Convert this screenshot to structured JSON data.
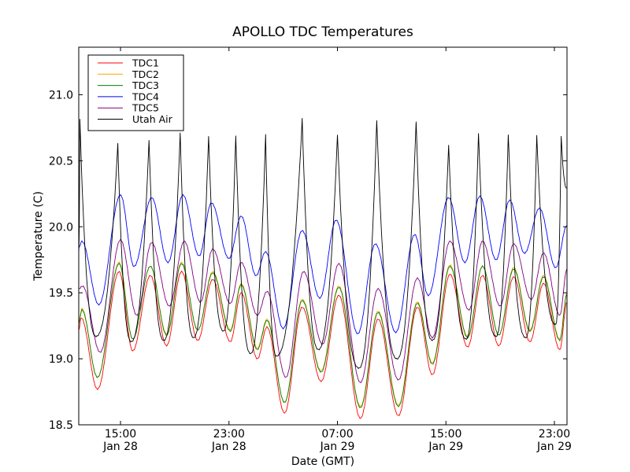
{
  "chart_data": {
    "type": "line",
    "title": "APOLLO TDC Temperatures",
    "xlabel": "Date (GMT)",
    "ylabel": "Temperature (C)",
    "x_units": "hours since Jan 28 12:00 GMT",
    "xlim": [
      -0.08,
      35.93
    ],
    "ylim": [
      18.5,
      21.36
    ],
    "grid": false,
    "legend_position": "top-left",
    "y_ticks": [
      {
        "value": 18.5,
        "label": "18.5"
      },
      {
        "value": 19.0,
        "label": "19.0"
      },
      {
        "value": 19.5,
        "label": "19.5"
      },
      {
        "value": 20.0,
        "label": "20.0"
      },
      {
        "value": 20.5,
        "label": "20.5"
      },
      {
        "value": 21.0,
        "label": "21.0"
      }
    ],
    "x_ticks": [
      {
        "value": 3,
        "time": "15:00",
        "date": "Jan 28"
      },
      {
        "value": 11,
        "time": "23:00",
        "date": "Jan 28"
      },
      {
        "value": 19,
        "time": "07:00",
        "date": "Jan 29"
      },
      {
        "value": 27,
        "time": "15:00",
        "date": "Jan 29"
      },
      {
        "value": 35,
        "time": "23:00",
        "date": "Jan 29"
      }
    ],
    "series": [
      {
        "name": "TDC1",
        "color": "#ff0000",
        "style": "smooth",
        "points": [
          [
            -0.08,
            19.22
          ],
          [
            0.1,
            19.31
          ],
          [
            1.3,
            18.77
          ],
          [
            2.9,
            19.66
          ],
          [
            3.9,
            19.06
          ],
          [
            5.2,
            19.63
          ],
          [
            6.4,
            19.1
          ],
          [
            7.5,
            19.66
          ],
          [
            8.7,
            19.14
          ],
          [
            9.8,
            19.6
          ],
          [
            11.1,
            19.13
          ],
          [
            11.9,
            19.5
          ],
          [
            13.1,
            19.0
          ],
          [
            13.8,
            19.24
          ],
          [
            15.1,
            18.59
          ],
          [
            16.4,
            19.39
          ],
          [
            17.8,
            18.83
          ],
          [
            19.1,
            19.48
          ],
          [
            20.7,
            18.55
          ],
          [
            22.0,
            19.3
          ],
          [
            23.5,
            18.57
          ],
          [
            24.9,
            19.39
          ],
          [
            26.0,
            18.88
          ],
          [
            27.3,
            19.64
          ],
          [
            28.6,
            19.09
          ],
          [
            29.7,
            19.63
          ],
          [
            30.9,
            19.1
          ],
          [
            32.0,
            19.62
          ],
          [
            33.2,
            19.13
          ],
          [
            34.2,
            19.57
          ],
          [
            35.4,
            19.07
          ],
          [
            35.93,
            19.43
          ]
        ]
      },
      {
        "name": "TDC2",
        "color": "#ffa500",
        "style": "smooth",
        "points": [
          [
            -0.08,
            19.28
          ],
          [
            0.15,
            19.38
          ],
          [
            1.3,
            18.86
          ],
          [
            2.9,
            19.73
          ],
          [
            3.9,
            19.15
          ],
          [
            5.2,
            19.7
          ],
          [
            6.4,
            19.19
          ],
          [
            7.5,
            19.73
          ],
          [
            8.7,
            19.22
          ],
          [
            9.8,
            19.66
          ],
          [
            11.1,
            19.22
          ],
          [
            11.9,
            19.57
          ],
          [
            13.1,
            19.08
          ],
          [
            13.8,
            19.3
          ],
          [
            15.1,
            18.67
          ],
          [
            16.4,
            19.45
          ],
          [
            17.8,
            18.91
          ],
          [
            19.1,
            19.55
          ],
          [
            20.7,
            18.64
          ],
          [
            22.0,
            19.36
          ],
          [
            23.5,
            18.65
          ],
          [
            24.9,
            19.43
          ],
          [
            26.0,
            18.97
          ],
          [
            27.3,
            19.71
          ],
          [
            28.6,
            19.17
          ],
          [
            29.7,
            19.7
          ],
          [
            30.9,
            19.18
          ],
          [
            32.0,
            19.69
          ],
          [
            33.2,
            19.22
          ],
          [
            34.2,
            19.63
          ],
          [
            35.4,
            19.15
          ],
          [
            35.93,
            19.5
          ]
        ]
      },
      {
        "name": "TDC3",
        "color": "#008000",
        "style": "smooth",
        "points": [
          [
            -0.08,
            19.27
          ],
          [
            0.15,
            19.37
          ],
          [
            1.3,
            18.86
          ],
          [
            2.9,
            19.72
          ],
          [
            3.9,
            19.15
          ],
          [
            5.2,
            19.7
          ],
          [
            6.4,
            19.18
          ],
          [
            7.5,
            19.72
          ],
          [
            8.7,
            19.22
          ],
          [
            9.8,
            19.65
          ],
          [
            11.1,
            19.21
          ],
          [
            11.9,
            19.56
          ],
          [
            13.1,
            19.07
          ],
          [
            13.8,
            19.29
          ],
          [
            15.1,
            18.67
          ],
          [
            16.4,
            19.44
          ],
          [
            17.8,
            18.9
          ],
          [
            19.1,
            19.54
          ],
          [
            20.7,
            18.63
          ],
          [
            22.0,
            19.35
          ],
          [
            23.5,
            18.64
          ],
          [
            24.9,
            19.42
          ],
          [
            26.0,
            18.96
          ],
          [
            27.3,
            19.7
          ],
          [
            28.6,
            19.16
          ],
          [
            29.7,
            19.7
          ],
          [
            30.9,
            19.18
          ],
          [
            32.0,
            19.68
          ],
          [
            33.2,
            19.21
          ],
          [
            34.2,
            19.62
          ],
          [
            35.4,
            19.14
          ],
          [
            35.93,
            19.49
          ]
        ]
      },
      {
        "name": "TDC4",
        "color": "#0000ff",
        "style": "smooth",
        "points": [
          [
            -0.08,
            19.84
          ],
          [
            0.15,
            19.89
          ],
          [
            1.4,
            19.41
          ],
          [
            3.0,
            20.24
          ],
          [
            4.0,
            19.7
          ],
          [
            5.3,
            20.22
          ],
          [
            6.5,
            19.73
          ],
          [
            7.6,
            20.24
          ],
          [
            8.8,
            19.78
          ],
          [
            9.7,
            20.18
          ],
          [
            11.0,
            19.76
          ],
          [
            11.9,
            20.08
          ],
          [
            13.0,
            19.63
          ],
          [
            13.7,
            19.81
          ],
          [
            15.0,
            19.23
          ],
          [
            16.4,
            19.97
          ],
          [
            17.7,
            19.46
          ],
          [
            18.9,
            20.05
          ],
          [
            20.5,
            19.19
          ],
          [
            21.8,
            19.87
          ],
          [
            23.3,
            19.2
          ],
          [
            24.7,
            19.94
          ],
          [
            25.7,
            19.48
          ],
          [
            27.2,
            20.22
          ],
          [
            28.4,
            19.73
          ],
          [
            29.5,
            20.23
          ],
          [
            30.7,
            19.75
          ],
          [
            31.7,
            20.2
          ],
          [
            32.8,
            19.8
          ],
          [
            33.9,
            20.14
          ],
          [
            35.1,
            19.69
          ],
          [
            35.93,
            20.01
          ]
        ]
      },
      {
        "name": "TDC5",
        "color": "#800080",
        "style": "smooth",
        "points": [
          [
            -0.08,
            19.53
          ],
          [
            0.2,
            19.55
          ],
          [
            1.5,
            19.05
          ],
          [
            3.0,
            19.9
          ],
          [
            4.2,
            19.33
          ],
          [
            5.3,
            19.88
          ],
          [
            6.6,
            19.4
          ],
          [
            7.7,
            19.89
          ],
          [
            8.9,
            19.43
          ],
          [
            9.8,
            19.83
          ],
          [
            11.1,
            19.42
          ],
          [
            11.9,
            19.73
          ],
          [
            13.1,
            19.33
          ],
          [
            13.8,
            19.51
          ],
          [
            15.2,
            18.86
          ],
          [
            16.5,
            19.66
          ],
          [
            17.9,
            19.11
          ],
          [
            19.1,
            19.72
          ],
          [
            20.7,
            18.82
          ],
          [
            22.0,
            19.53
          ],
          [
            23.5,
            18.84
          ],
          [
            24.9,
            19.61
          ],
          [
            26.0,
            19.16
          ],
          [
            27.3,
            19.89
          ],
          [
            28.7,
            19.37
          ],
          [
            29.7,
            19.89
          ],
          [
            31.0,
            19.4
          ],
          [
            32.0,
            19.87
          ],
          [
            33.3,
            19.45
          ],
          [
            34.2,
            19.8
          ],
          [
            35.4,
            19.33
          ],
          [
            35.93,
            19.68
          ]
        ]
      },
      {
        "name": "Utah Air",
        "color": "#000000",
        "style": "spiky",
        "points": [
          [
            -0.08,
            19.8
          ],
          [
            0.0,
            20.82
          ],
          [
            1.2,
            19.17
          ],
          [
            2.8,
            20.63
          ],
          [
            3.8,
            19.13
          ],
          [
            5.1,
            20.66
          ],
          [
            6.2,
            19.14
          ],
          [
            7.4,
            20.71
          ],
          [
            8.4,
            19.16
          ],
          [
            9.5,
            20.69
          ],
          [
            10.6,
            19.21
          ],
          [
            11.5,
            20.69
          ],
          [
            12.6,
            19.04
          ],
          [
            13.7,
            20.7
          ],
          [
            14.5,
            19.02
          ],
          [
            16.4,
            20.82
          ],
          [
            17.6,
            19.07
          ],
          [
            19.0,
            20.7
          ],
          [
            20.6,
            18.93
          ],
          [
            21.9,
            20.81
          ],
          [
            23.4,
            19.0
          ],
          [
            24.8,
            20.8
          ],
          [
            26.0,
            19.14
          ],
          [
            27.2,
            20.62
          ],
          [
            28.5,
            19.15
          ],
          [
            29.4,
            20.71
          ],
          [
            30.7,
            19.17
          ],
          [
            31.6,
            20.7
          ],
          [
            32.9,
            19.16
          ],
          [
            33.7,
            20.69
          ],
          [
            35.1,
            19.26
          ],
          [
            35.5,
            20.69
          ],
          [
            35.93,
            20.29
          ]
        ]
      }
    ]
  }
}
